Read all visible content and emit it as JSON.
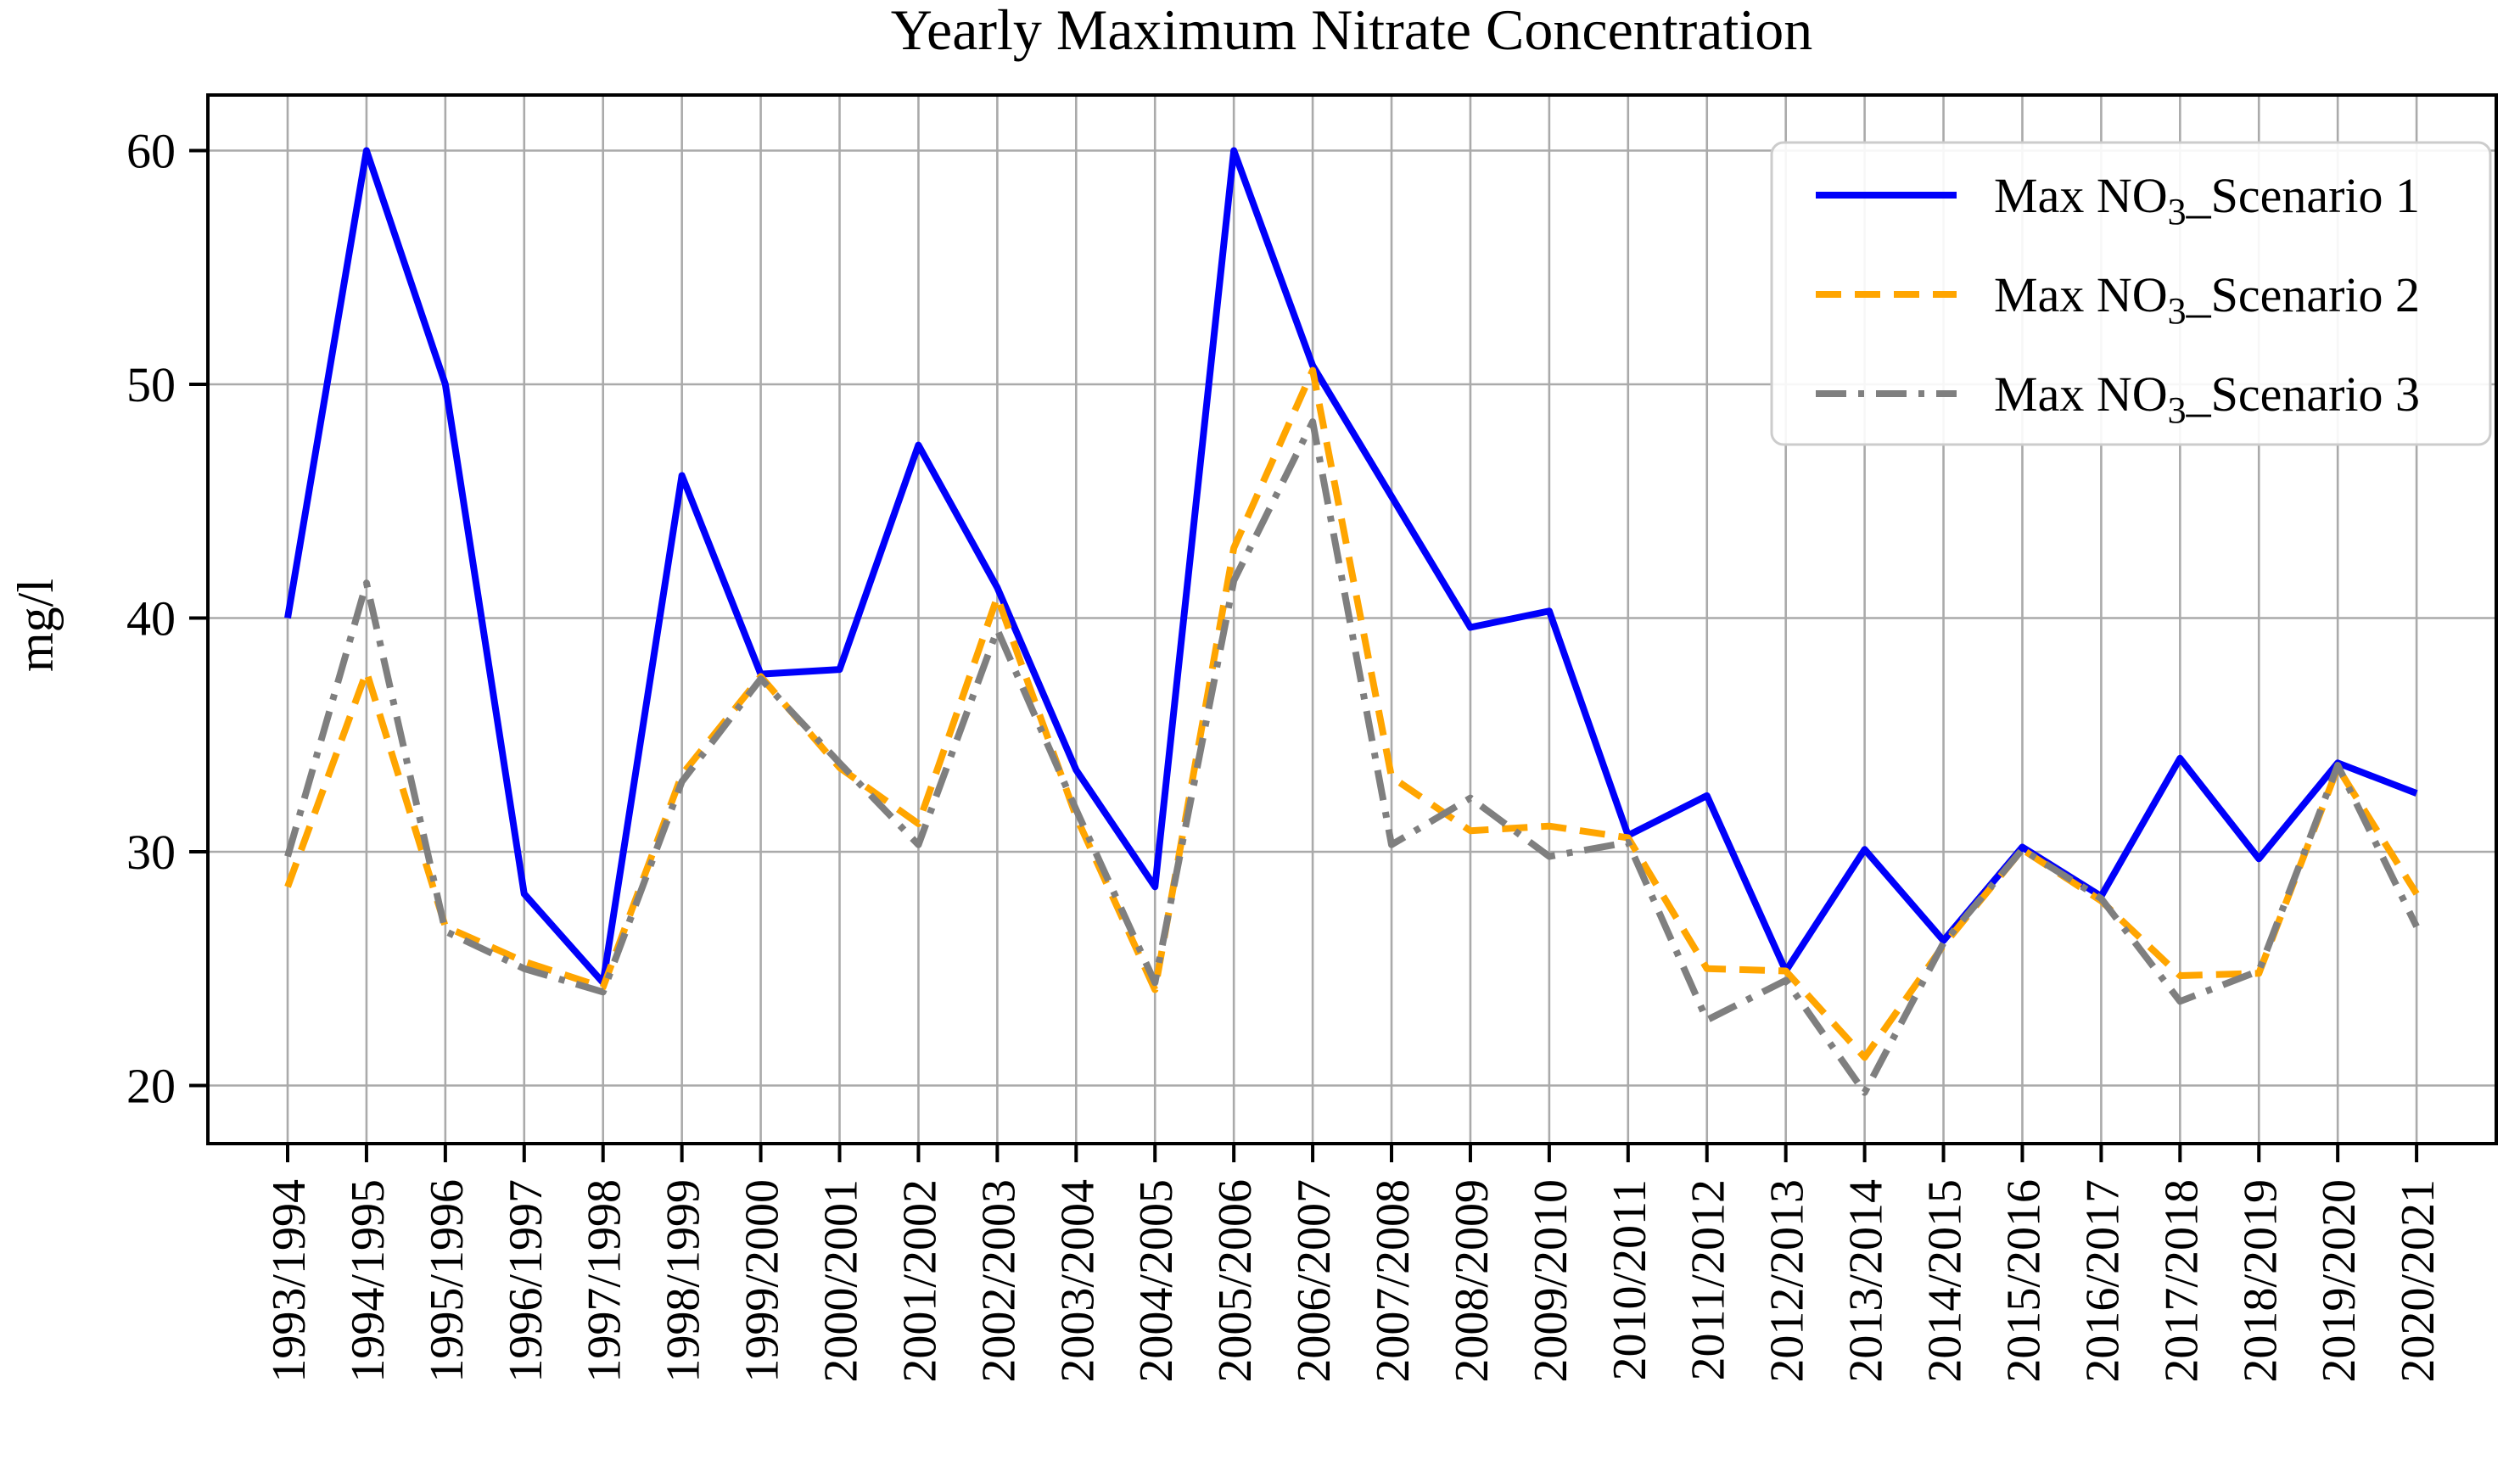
{
  "chart_data": {
    "type": "line",
    "title": "Yearly Maximum Nitrate Concentration",
    "ylabel": "mg/l",
    "xlabel": "",
    "yticks": [
      20,
      30,
      40,
      50,
      60
    ],
    "ylim": [
      17.5,
      62.5
    ],
    "grid": true,
    "legend_position": "upper right",
    "categories": [
      "1993/1994",
      "1994/1995",
      "1995/1996",
      "1996/1997",
      "1997/1998",
      "1998/1999",
      "1999/2000",
      "2000/2001",
      "2001/2002",
      "2002/2003",
      "2003/2004",
      "2004/2005",
      "2005/2006",
      "2006/2007",
      "2007/2008",
      "2008/2009",
      "2009/2010",
      "2010/2011",
      "2011/2012",
      "2012/2013",
      "2013/2014",
      "2014/2015",
      "2015/2016",
      "2016/2017",
      "2017/2018",
      "2018/2019",
      "2019/2020",
      "2020/2021"
    ],
    "series": [
      {
        "name": "Max NO3_Scenario 1",
        "label_pre": "Max NO",
        "label_sub": "3",
        "label_post": "_Scenario 1",
        "color": "#0000fa",
        "style": "solid",
        "values": [
          40.0,
          60.0,
          50.0,
          28.2,
          24.4,
          46.1,
          37.6,
          37.8,
          47.4,
          41.3,
          33.5,
          28.5,
          60.0,
          50.8,
          45.2,
          39.6,
          40.3,
          30.7,
          32.4,
          24.9,
          30.1,
          26.2,
          30.2,
          28.1,
          34.0,
          29.7,
          33.8,
          32.5
        ]
      },
      {
        "name": "Max NO3_Scenario 2",
        "label_pre": "Max NO",
        "label_sub": "3",
        "label_post": "_Scenario 2",
        "color": "#ffa500",
        "style": "dashed",
        "values": [
          28.5,
          37.7,
          26.8,
          25.3,
          24.2,
          33.3,
          37.5,
          33.6,
          31.2,
          40.9,
          31.5,
          24.1,
          43.0,
          50.6,
          33.2,
          30.9,
          31.1,
          30.6,
          25.0,
          24.9,
          21.2,
          26.0,
          30.1,
          27.9,
          24.7,
          24.8,
          33.6,
          28.2
        ]
      },
      {
        "name": "Max NO3_Scenario 3",
        "label_pre": "Max NO",
        "label_sub": "3",
        "label_post": "_Scenario 3",
        "color": "#7f7f7f",
        "style": "dashdot",
        "values": [
          29.8,
          41.5,
          26.6,
          25.0,
          24.0,
          33.0,
          37.4,
          33.8,
          30.3,
          39.5,
          31.8,
          24.4,
          41.6,
          48.4,
          30.3,
          32.3,
          29.8,
          30.4,
          22.8,
          24.5,
          19.7,
          26.1,
          30.1,
          28.0,
          23.6,
          24.9,
          33.7,
          26.8
        ]
      }
    ],
    "colors": {
      "grid": "#aaaaaa",
      "axis": "#000000",
      "legend_border": "#cccccc",
      "background": "#ffffff"
    }
  }
}
